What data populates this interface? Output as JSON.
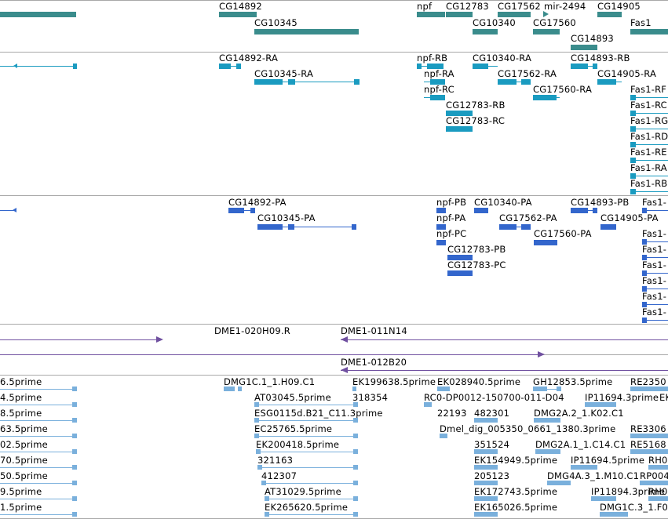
{
  "colors": {
    "gene": "#3a8c8c",
    "transcript": "#1a9bc0",
    "protein": "#3366cc",
    "clone": "#7050a0",
    "est": "#7ab0dc",
    "separator": "#a8a8a8"
  },
  "tracks": {
    "genes": {
      "items": [
        {
          "label": "CG14892"
        },
        {
          "label": "CG10345"
        },
        {
          "label": "npf"
        },
        {
          "label": "CG12783"
        },
        {
          "label": "CG17562"
        },
        {
          "label": "mir-2494"
        },
        {
          "label": "CG14905"
        },
        {
          "label": "CG10340"
        },
        {
          "label": "CG17560"
        },
        {
          "label": "Fas1"
        },
        {
          "label": "CG14893"
        }
      ]
    },
    "transcripts": {
      "items": [
        {
          "label": "CG14892-RA"
        },
        {
          "label": "CG10345-RA"
        },
        {
          "label": "npf-RB"
        },
        {
          "label": "npf-RA"
        },
        {
          "label": "npf-RC"
        },
        {
          "label": "CG10340-RA"
        },
        {
          "label": "CG14893-RB"
        },
        {
          "label": "CG17562-RA"
        },
        {
          "label": "CG14905-RA"
        },
        {
          "label": "CG17560-RA"
        },
        {
          "label": "CG12783-RB"
        },
        {
          "label": "CG12783-RC"
        },
        {
          "label": "Fas1-RF"
        },
        {
          "label": "Fas1-RC"
        },
        {
          "label": "Fas1-RG"
        },
        {
          "label": "Fas1-RD"
        },
        {
          "label": "Fas1-RE"
        },
        {
          "label": "Fas1-RA"
        },
        {
          "label": "Fas1-RB"
        }
      ]
    },
    "proteins": {
      "items": [
        {
          "label": "CG14892-PA"
        },
        {
          "label": "CG10345-PA"
        },
        {
          "label": "npf-PB"
        },
        {
          "label": "CG10340-PA"
        },
        {
          "label": "CG14893-PB"
        },
        {
          "label": "Fas1-"
        },
        {
          "label": "npf-PA"
        },
        {
          "label": "CG17562-PA"
        },
        {
          "label": "CG14905-PA"
        },
        {
          "label": "npf-PC"
        },
        {
          "label": "CG17560-PA"
        },
        {
          "label": "CG12783-PB"
        },
        {
          "label": "CG12783-PC"
        },
        {
          "label": "Fas1-"
        },
        {
          "label": "Fas1-"
        },
        {
          "label": "Fas1-"
        },
        {
          "label": "Fas1-"
        },
        {
          "label": "Fas1-"
        },
        {
          "label": "Fas1-"
        }
      ]
    },
    "clones": {
      "items": [
        {
          "label": "DME1-020H09.R"
        },
        {
          "label": "DME1-011N14"
        },
        {
          "label": "DME1-012B20"
        }
      ]
    },
    "ests": {
      "items": [
        {
          "label": "6.5prime"
        },
        {
          "label": "4.5prime"
        },
        {
          "label": "8.5prime"
        },
        {
          "label": "63.5prime"
        },
        {
          "label": "02.5prime"
        },
        {
          "label": "70.5prime"
        },
        {
          "label": "50.5prime"
        },
        {
          "label": "9.5prime"
        },
        {
          "label": "1.5prime"
        },
        {
          "label": "DMG1C.1_1.H09.C1"
        },
        {
          "label": "EK199638.5prime"
        },
        {
          "label": "EK028940.5prime"
        },
        {
          "label": "GH12853.5prime"
        },
        {
          "label": "RE2350"
        },
        {
          "label": "AT03045.5prime"
        },
        {
          "label": "318354"
        },
        {
          "label": "RC0-DP0012-150700-011-D04"
        },
        {
          "label": "IP11694.3prime"
        },
        {
          "label": "EK"
        },
        {
          "label": "ESG0115d.B21_C11.3prime"
        },
        {
          "label": "22193"
        },
        {
          "label": "482301"
        },
        {
          "label": "DMG2A.2_1.K02.C1"
        },
        {
          "label": "EC25765.5prime"
        },
        {
          "label": "Dmel_dig_005350_0661_1380.3prime"
        },
        {
          "label": "RE3306"
        },
        {
          "label": "EK200418.5prime"
        },
        {
          "label": "351524"
        },
        {
          "label": "DMG2A.1_1.C14.C1"
        },
        {
          "label": "RE5168"
        },
        {
          "label": "321163"
        },
        {
          "label": "EK154949.5prime"
        },
        {
          "label": "IP11694.5prime"
        },
        {
          "label": "RH0"
        },
        {
          "label": "412307"
        },
        {
          "label": "205123"
        },
        {
          "label": "DMG4A.3_1.M10.C1"
        },
        {
          "label": "RP004"
        },
        {
          "label": "AT31029.5prime"
        },
        {
          "label": "EK172743.5prime"
        },
        {
          "label": "IP11894.3prime"
        },
        {
          "label": "RH0"
        },
        {
          "label": "EK265620.5prime"
        },
        {
          "label": "EK165026.5prime"
        },
        {
          "label": "DMG1C.3_1.F0"
        }
      ]
    }
  }
}
